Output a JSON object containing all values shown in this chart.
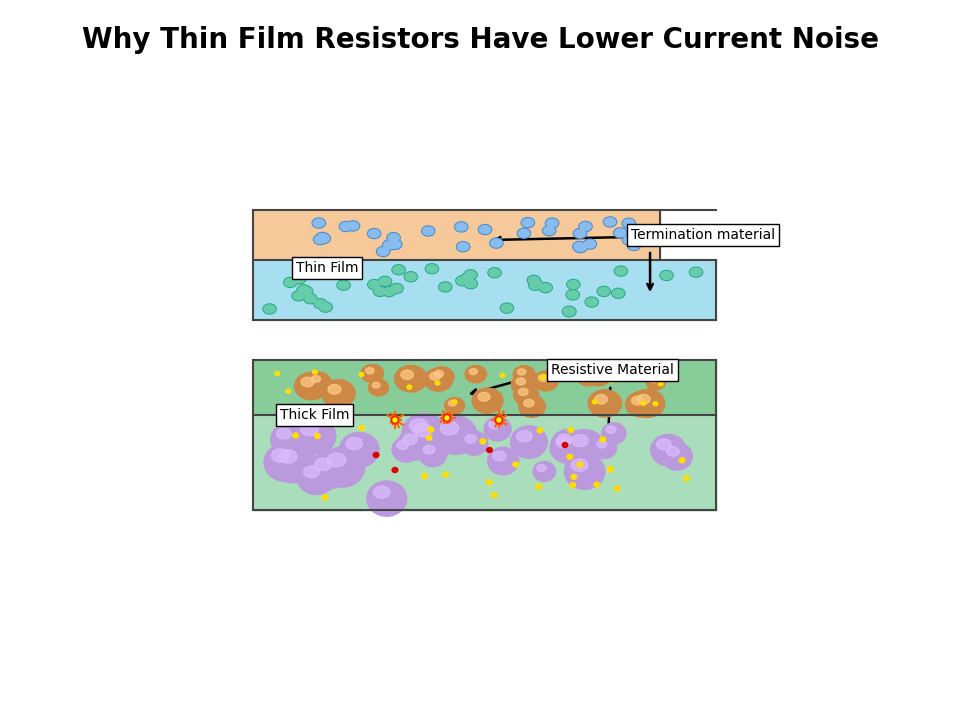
{
  "title": "Why Thin Film Resistors Have Lower Current Noise",
  "title_fontsize": 20,
  "title_fontweight": "bold",
  "bg_color": "#ffffff",
  "thin_film_label": "Thin Film",
  "thick_film_label": "Thick Film",
  "termination_label": "Termination material",
  "resistive_label": "Resistive Material",
  "thin_film_top_color": "#f5c99a",
  "thin_film_bottom_color": "#a8dff0",
  "thick_film_top_color": "#f5c99a",
  "thick_film_bottom_color": "#b8f0d0",
  "thin_particle_color_top": "#4488cc",
  "thin_particle_color_bottom": "#22aa88",
  "thick_particle_top_color": "#e8a060",
  "thick_particle_bottom_color": "#cc99ee"
}
